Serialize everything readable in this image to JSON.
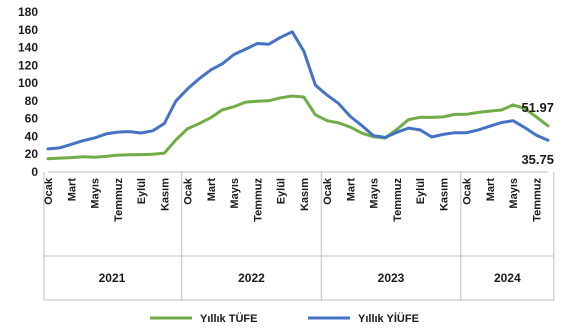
{
  "chart_data": {
    "type": "line",
    "ylim": [
      0,
      180
    ],
    "yticks": [
      0,
      20,
      40,
      60,
      80,
      100,
      120,
      140,
      160,
      180
    ],
    "month_tick_labels": [
      {
        "index": 0,
        "label": "Ocak"
      },
      {
        "index": 2,
        "label": "Mart"
      },
      {
        "index": 4,
        "label": "Mayıs"
      },
      {
        "index": 6,
        "label": "Temmuz"
      },
      {
        "index": 8,
        "label": "Eylül"
      },
      {
        "index": 10,
        "label": "Kasım"
      },
      {
        "index": 12,
        "label": "Ocak"
      },
      {
        "index": 14,
        "label": "Mart"
      },
      {
        "index": 16,
        "label": "Mayıs"
      },
      {
        "index": 18,
        "label": "Temmuz"
      },
      {
        "index": 20,
        "label": "Eylül"
      },
      {
        "index": 22,
        "label": "Kasım"
      },
      {
        "index": 24,
        "label": "Ocak"
      },
      {
        "index": 26,
        "label": "Mart"
      },
      {
        "index": 28,
        "label": "Mayıs"
      },
      {
        "index": 30,
        "label": "Temmuz"
      },
      {
        "index": 32,
        "label": "Eylül"
      },
      {
        "index": 34,
        "label": "Kasım"
      },
      {
        "index": 36,
        "label": "Ocak"
      },
      {
        "index": 38,
        "label": "Mart"
      },
      {
        "index": 40,
        "label": "Mayıs"
      },
      {
        "index": 42,
        "label": "Temmuz"
      }
    ],
    "year_groups": [
      {
        "label": "2021",
        "start": 0,
        "end": 11
      },
      {
        "label": "2022",
        "start": 12,
        "end": 23
      },
      {
        "label": "2023",
        "start": 24,
        "end": 35
      },
      {
        "label": "2024",
        "start": 36,
        "end": 43
      }
    ],
    "series": [
      {
        "name": "Yıllık TÜFE",
        "color": "#70ad47",
        "values": [
          15,
          15.6,
          16.2,
          17.1,
          16.6,
          17.5,
          19.0,
          19.3,
          19.6,
          20.0,
          21.3,
          36.1,
          48.7,
          54.4,
          61.1,
          70.0,
          73.5,
          78.6,
          79.6,
          80.2,
          83.5,
          85.5,
          84.4,
          64.3,
          57.7,
          55.2,
          50.5,
          43.7,
          39.6,
          38.2,
          47.8,
          58.9,
          61.5,
          61.4,
          62.0,
          64.8,
          64.9,
          67.1,
          68.5,
          69.8,
          75.5,
          71.6,
          61.8,
          51.97
        ],
        "end_label": "51.97"
      },
      {
        "name": "Yıllık YİÜFE",
        "color": "#4472c4",
        "values": [
          26,
          27.1,
          31.2,
          35.2,
          38.3,
          42.9,
          44.9,
          45.5,
          43.9,
          46.3,
          54.6,
          79.9,
          93.5,
          105.0,
          114.9,
          121.8,
          132.2,
          138.3,
          144.6,
          143.8,
          151.5,
          157.7,
          136.0,
          97.7,
          86.5,
          76.9,
          62.4,
          52.1,
          40.8,
          38.9,
          44.5,
          49.4,
          47.4,
          39.4,
          42.3,
          44.2,
          44.2,
          47.3,
          51.5,
          55.7,
          57.7,
          50.1,
          41.4,
          35.75
        ],
        "end_label": "35.75"
      }
    ],
    "legend_position": "bottom",
    "grid": false
  }
}
